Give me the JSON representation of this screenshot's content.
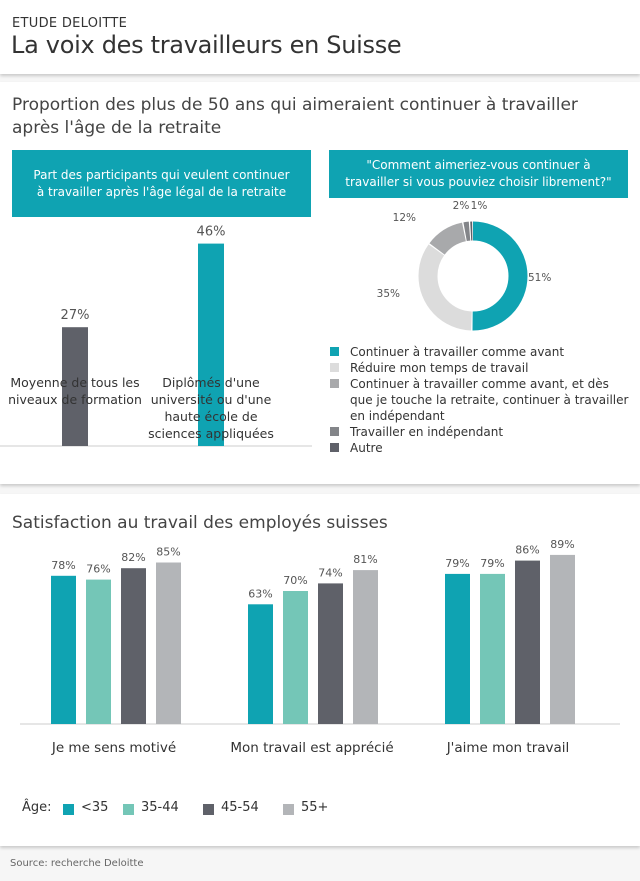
{
  "header": {
    "kicker": "ETUDE DELOITTE",
    "title": "La voix des travailleurs en Suisse"
  },
  "section1": {
    "title": "Proportion des plus de 50 ans qui aimeraient continuer à travailler après l'âge de la retraite",
    "left_box": "Part des participants qui veulent continuer à travailler après l'âge légal de la retraite",
    "right_box": "\"Comment aimeriez-vous continuer à travailler si vous pouviez choisir librement?\""
  },
  "section2": {
    "title": "Satisfaction au travail des employés suisses",
    "age_label": "Âge:"
  },
  "source": "Source: recherche Deloitte",
  "colors": {
    "teal": "#0fa3b2",
    "mint": "#74c6b7",
    "dark": "#5f6169",
    "gray": "#b3b5b8",
    "light": "#dcdcdc",
    "mid": "#a8a9ab",
    "darkgray": "#838589"
  },
  "chart_data": [
    {
      "type": "bar",
      "title": "Part des participants qui veulent continuer à travailler après l'âge légal de la retraite",
      "categories": [
        "Moyenne de tous les niveaux de formation",
        "Diplômés d'une université ou d'une haute école de sciences appliquées"
      ],
      "values": [
        27,
        46
      ],
      "labels": [
        "27%",
        "46%"
      ],
      "bar_colors": [
        "#5f6169",
        "#0fa3b2"
      ],
      "ylim": [
        0,
        50
      ]
    },
    {
      "type": "pie",
      "title": "\"Comment aimeriez-vous continuer à travailler si vous pouviez choisir librement?\"",
      "slices": [
        {
          "label": "Continuer à travailler comme avant",
          "value": 51,
          "text": "51%",
          "color": "#0fa3b2"
        },
        {
          "label": "Réduire mon temps de travail",
          "value": 35,
          "text": "35%",
          "color": "#dcdcdc"
        },
        {
          "label": "Continuer à travailler comme avant, et dès que je touche la retraite, continuer à travailler en indépendant",
          "value": 12,
          "text": "12%",
          "color": "#a8a9ab"
        },
        {
          "label": "Travailler en indépendant",
          "value": 2,
          "text": "2%",
          "color": "#838589"
        },
        {
          "label": "Autre",
          "value": 1,
          "text": "1%",
          "color": "#5f6169"
        }
      ],
      "donut": true
    },
    {
      "type": "bar",
      "title": "Satisfaction au travail des employés suisses",
      "categories": [
        "Je me sens motivé",
        "Mon travail est apprécié",
        "J'aime mon travail"
      ],
      "series": [
        {
          "name": "<35",
          "values": [
            78,
            63,
            79
          ],
          "color": "#0fa3b2"
        },
        {
          "name": "35-44",
          "values": [
            76,
            70,
            79
          ],
          "color": "#74c6b7"
        },
        {
          "name": "45-54",
          "values": [
            82,
            74,
            86
          ],
          "color": "#5f6169"
        },
        {
          "name": "55+",
          "values": [
            85,
            81,
            89
          ],
          "color": "#b3b5b8"
        }
      ],
      "ylim": [
        0,
        100
      ],
      "legend_position": "bottom-left"
    }
  ]
}
